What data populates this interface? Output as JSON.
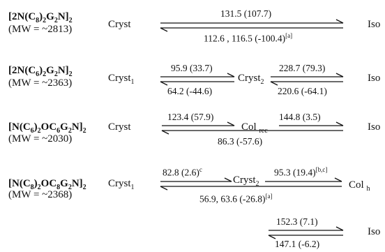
{
  "compounds": [
    {
      "name_main": "[2N(C",
      "name_s1": "8",
      "name_m1": ")",
      "name_s2": "2",
      "name_m2": "G",
      "name_s3": "2",
      "name_m3": "N]",
      "name_s4": "2",
      "mw": "(MW = ~2813)",
      "phases": [
        "Cryst",
        "Iso"
      ],
      "transitions": [
        {
          "text": "131.5 (107.7)"
        },
        {
          "text": "112.6 , 116.5 (-100.4)",
          "sup": "[a]"
        }
      ]
    },
    {
      "name_main": "[2N(C",
      "name_s1": "6",
      "name_m1": ")",
      "name_s2": "2",
      "name_m2": "G",
      "name_s3": "2",
      "name_m3": "N]",
      "name_s4": "2",
      "mw": "(MW = ~2363)",
      "phases": [
        {
          "base": "Cryst",
          "sub": "1"
        },
        {
          "base": "Cryst",
          "sub": "2"
        },
        "Iso"
      ],
      "transitions": [
        {
          "text": "95.9 (33.7)"
        },
        {
          "text": "64.2 (-44.6)"
        },
        {
          "text": "228.7 (79.3)"
        },
        {
          "text": "220.6 (-64.1)"
        }
      ]
    },
    {
      "name_a": "[N(C",
      "name_s1": "6",
      "name_b": ")",
      "name_s2": "2",
      "name_c": "OC",
      "name_s3": "6",
      "name_d": "G",
      "name_s4": "2",
      "name_e": "N]",
      "name_s5": "2",
      "mw": "(MW = ~2030)",
      "phases": [
        "Cryst",
        {
          "base": "Col",
          "sub": "rec"
        },
        "Iso"
      ],
      "transitions": [
        {
          "text": "123.4 (57.9)"
        },
        {
          "text": "144.8 (3.5)"
        },
        {
          "text": "86.3 (-57.6)"
        }
      ]
    },
    {
      "name_a": "[N(C",
      "name_s1": "8",
      "name_b": ")",
      "name_s2": "2",
      "name_c": "OC",
      "name_s3": "8",
      "name_d": "G",
      "name_s4": "2",
      "name_e": "N]",
      "name_s5": "2",
      "mw": "(MW = ~2368)",
      "phases": [
        {
          "base": "Cryst",
          "sub": "1"
        },
        {
          "base": "Cryst",
          "sub": "2"
        },
        {
          "base": "Col",
          "sub": "h"
        },
        "Iso"
      ],
      "transitions": [
        {
          "text": "82.8 (2.6)",
          "sup": "c"
        },
        {
          "text": "95.3 (19.4)",
          "sup": "[b,c]"
        },
        {
          "text": "56.9, 63.6 (-26.8)",
          "sup": "[a]"
        },
        {
          "text": "152.3 (7.1)"
        },
        {
          "text": "147.1 (-6.2)"
        }
      ]
    }
  ]
}
